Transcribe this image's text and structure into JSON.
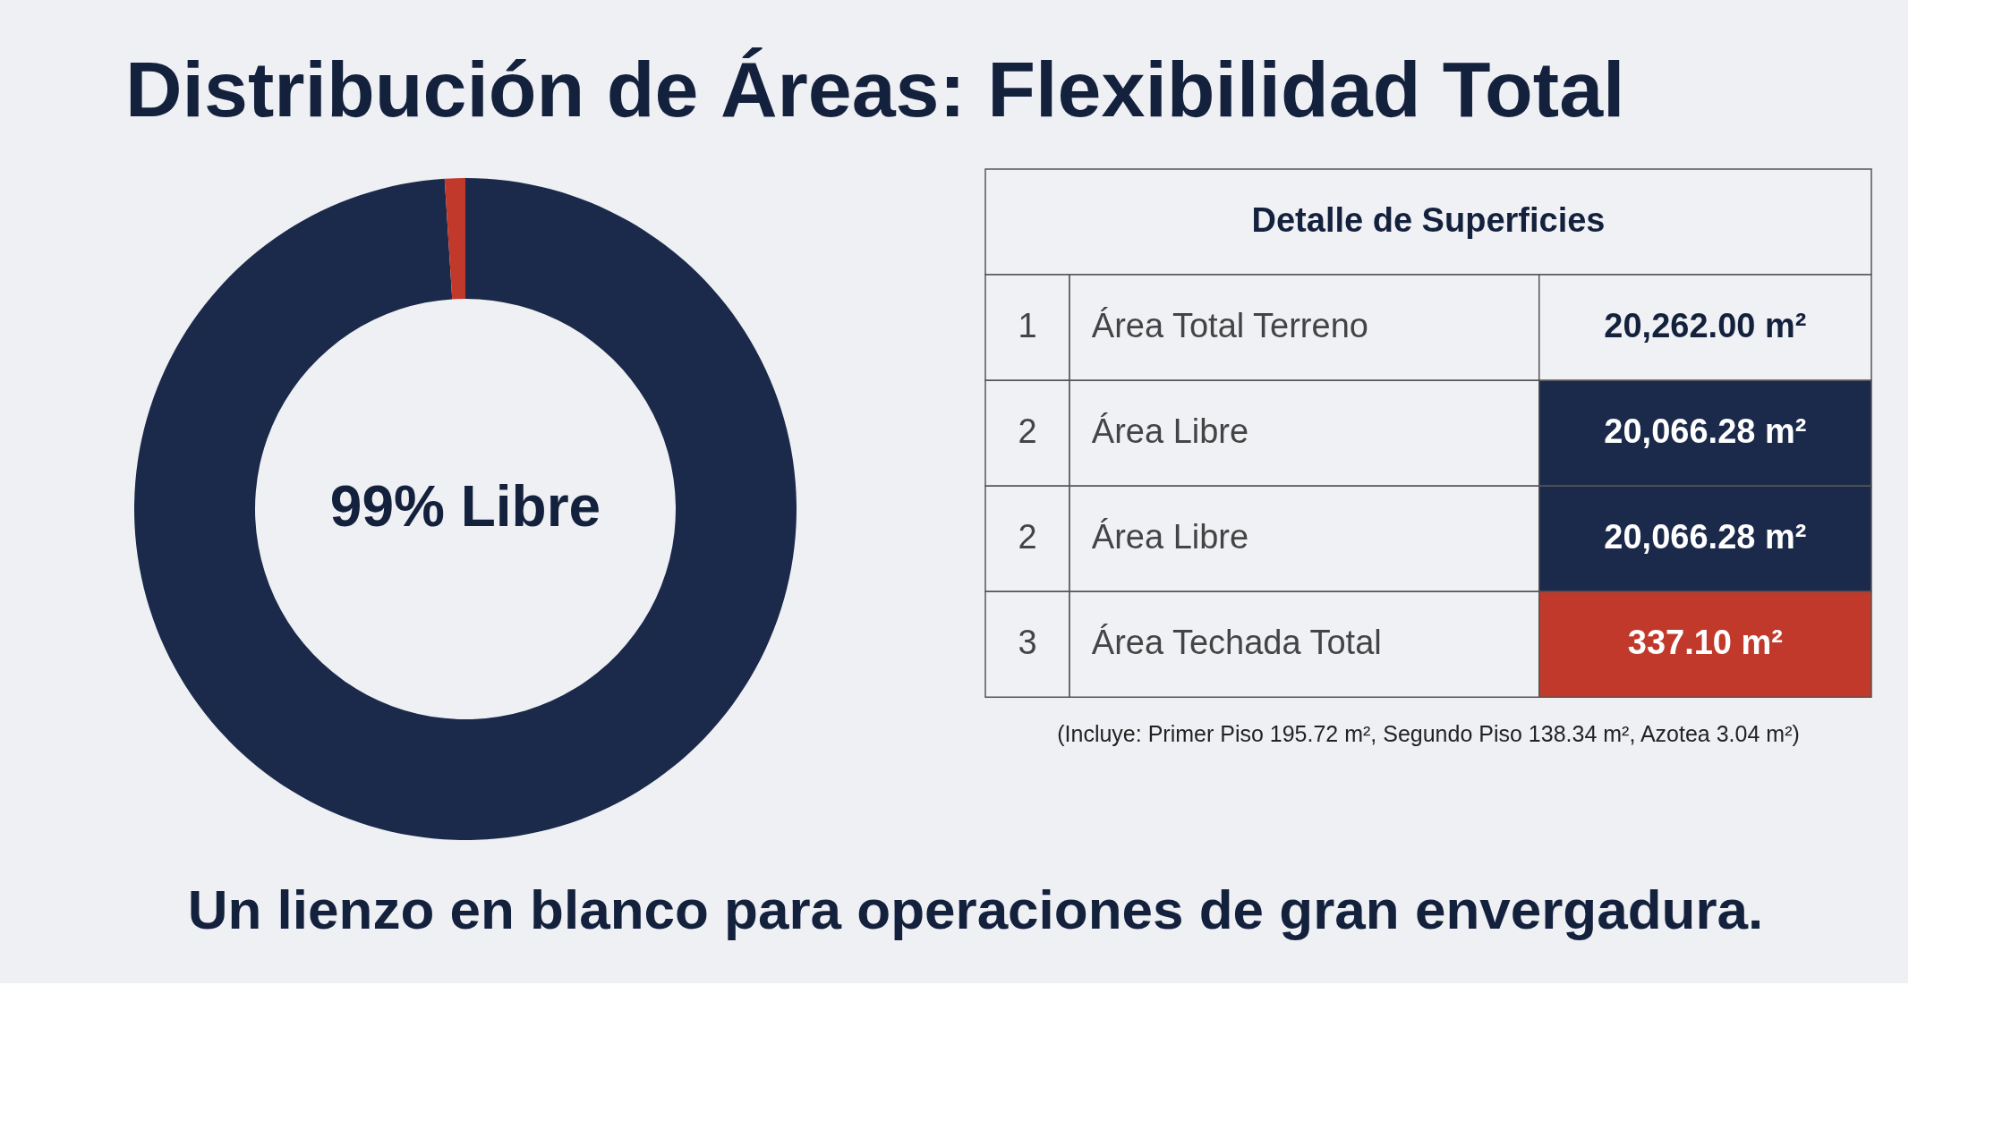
{
  "chart_data": [
    {
      "type": "donut",
      "title": "Distribución de Áreas: Flexibilidad Total",
      "categories": [
        null,
        null
      ],
      "values": [
        99,
        1
      ],
      "colors": [
        "#1b2a4a",
        "#c0392b"
      ],
      "annotations": [
        "99% Libre",
        "Un lienzo en blanco para operaciones de gran envergadura."
      ]
    },
    {
      "type": "other",
      "title": "Detalle de Superficies",
      "annotations": [
        "1",
        "Área Total Terreno",
        "20,262.00 m²",
        "2",
        "Área Libre",
        "20,066.28 m²",
        "2",
        "Área Libre",
        "20,066.28 m²",
        "3",
        "Área Techada Total",
        "337.10 m²",
        "(Incluye: Primer Piso 195.72 m², Segundo Piso 138.34 m², Azotea 3.04 m²)"
      ],
      "colors": [
        "#f0f1f5",
        "#1b2a4a",
        "#1b2a4a",
        "#c0392b"
      ]
    }
  ]
}
